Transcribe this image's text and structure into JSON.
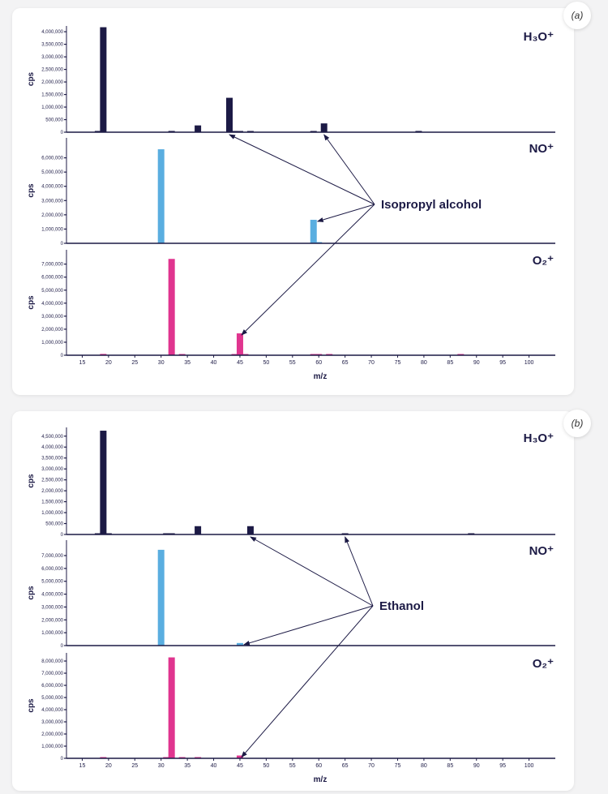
{
  "colors": {
    "H3O+": "#1c1a45",
    "NO+": "#5aaee0",
    "O2+": "#e0358f",
    "axis": "#1c1a45"
  },
  "chart_data": [
    {
      "type": "bar",
      "panel_label": "(a)",
      "xlabel": "m/z",
      "ylabel": "cps",
      "xlim": [
        12,
        105
      ],
      "xticks": [
        15,
        20,
        25,
        30,
        35,
        40,
        45,
        50,
        55,
        60,
        65,
        70,
        75,
        80,
        85,
        90,
        95,
        100
      ],
      "panels": [
        {
          "ion": "H3O+",
          "ion_label": "H₃O⁺",
          "ylim": [
            0,
            4230000
          ],
          "yticks": [
            0,
            500000,
            1000000,
            1500000,
            2000000,
            2500000,
            3000000,
            3500000,
            4000000
          ],
          "bars": [
            [
              18,
              50000
            ],
            [
              19,
              4180000
            ],
            [
              32,
              50000
            ],
            [
              37,
              270000
            ],
            [
              43,
              1370000
            ],
            [
              44,
              50000
            ],
            [
              45,
              30000
            ],
            [
              47,
              30000
            ],
            [
              59,
              30000
            ],
            [
              61,
              350000
            ],
            [
              79,
              50000
            ]
          ]
        },
        {
          "ion": "NO+",
          "ion_label": "NO⁺",
          "ylim": [
            0,
            7400000
          ],
          "yticks": [
            0,
            1000000,
            2000000,
            3000000,
            4000000,
            5000000,
            6000000
          ],
          "bars": [
            [
              30,
              6600000
            ],
            [
              59,
              1650000
            ],
            [
              60,
              60000
            ]
          ]
        },
        {
          "ion": "O2+",
          "ion_label": "O₂⁺",
          "ylim": [
            0,
            8100000
          ],
          "yticks": [
            0,
            1000000,
            2000000,
            3000000,
            4000000,
            5000000,
            6000000,
            7000000
          ],
          "bars": [
            [
              19,
              100000
            ],
            [
              32,
              7400000
            ],
            [
              34,
              30000
            ],
            [
              44,
              40000
            ],
            [
              45,
              1680000
            ],
            [
              46,
              30000
            ],
            [
              59,
              40000
            ],
            [
              60,
              30000
            ],
            [
              62,
              30000
            ],
            [
              87,
              40000
            ]
          ]
        }
      ],
      "annotation": {
        "text": "Isopropyl alcohol",
        "targets": [
          {
            "panel": 0,
            "mz": 43
          },
          {
            "panel": 0,
            "mz": 61
          },
          {
            "panel": 1,
            "mz": 59
          },
          {
            "panel": 2,
            "mz": 45
          }
        ]
      }
    },
    {
      "type": "bar",
      "panel_label": "(b)",
      "xlabel": "m/z",
      "ylabel": "cps",
      "xlim": [
        12,
        105
      ],
      "xticks": [
        15,
        20,
        25,
        30,
        35,
        40,
        45,
        50,
        55,
        60,
        65,
        70,
        75,
        80,
        85,
        90,
        95,
        100
      ],
      "panels": [
        {
          "ion": "H3O+",
          "ion_label": "H₃O⁺",
          "ylim": [
            0,
            4900000
          ],
          "yticks": [
            0,
            500000,
            1000000,
            1500000,
            2000000,
            2500000,
            3000000,
            3500000,
            4000000,
            4500000
          ],
          "bars": [
            [
              18,
              50000
            ],
            [
              19,
              4750000
            ],
            [
              20,
              30000
            ],
            [
              31,
              20000
            ],
            [
              32,
              20000
            ],
            [
              37,
              380000
            ],
            [
              47,
              380000
            ],
            [
              65,
              50000
            ],
            [
              89,
              50000
            ]
          ]
        },
        {
          "ion": "NO+",
          "ion_label": "NO⁺",
          "ylim": [
            0,
            8200000
          ],
          "yticks": [
            0,
            1000000,
            2000000,
            3000000,
            4000000,
            5000000,
            6000000,
            7000000
          ],
          "bars": [
            [
              30,
              7450000
            ],
            [
              45,
              200000
            ]
          ]
        },
        {
          "ion": "O2+",
          "ion_label": "O₂⁺",
          "ylim": [
            0,
            8670000
          ],
          "yticks": [
            0,
            1000000,
            2000000,
            3000000,
            4000000,
            5000000,
            6000000,
            7000000,
            8000000
          ],
          "bars": [
            [
              19,
              100000
            ],
            [
              31,
              100000
            ],
            [
              32,
              8300000
            ],
            [
              34,
              50000
            ],
            [
              37,
              100000
            ],
            [
              45,
              230000
            ]
          ]
        }
      ],
      "annotation": {
        "text": "Ethanol",
        "targets": [
          {
            "panel": 0,
            "mz": 47
          },
          {
            "panel": 0,
            "mz": 65
          },
          {
            "panel": 1,
            "mz": 45
          },
          {
            "panel": 2,
            "mz": 45
          }
        ]
      }
    }
  ]
}
